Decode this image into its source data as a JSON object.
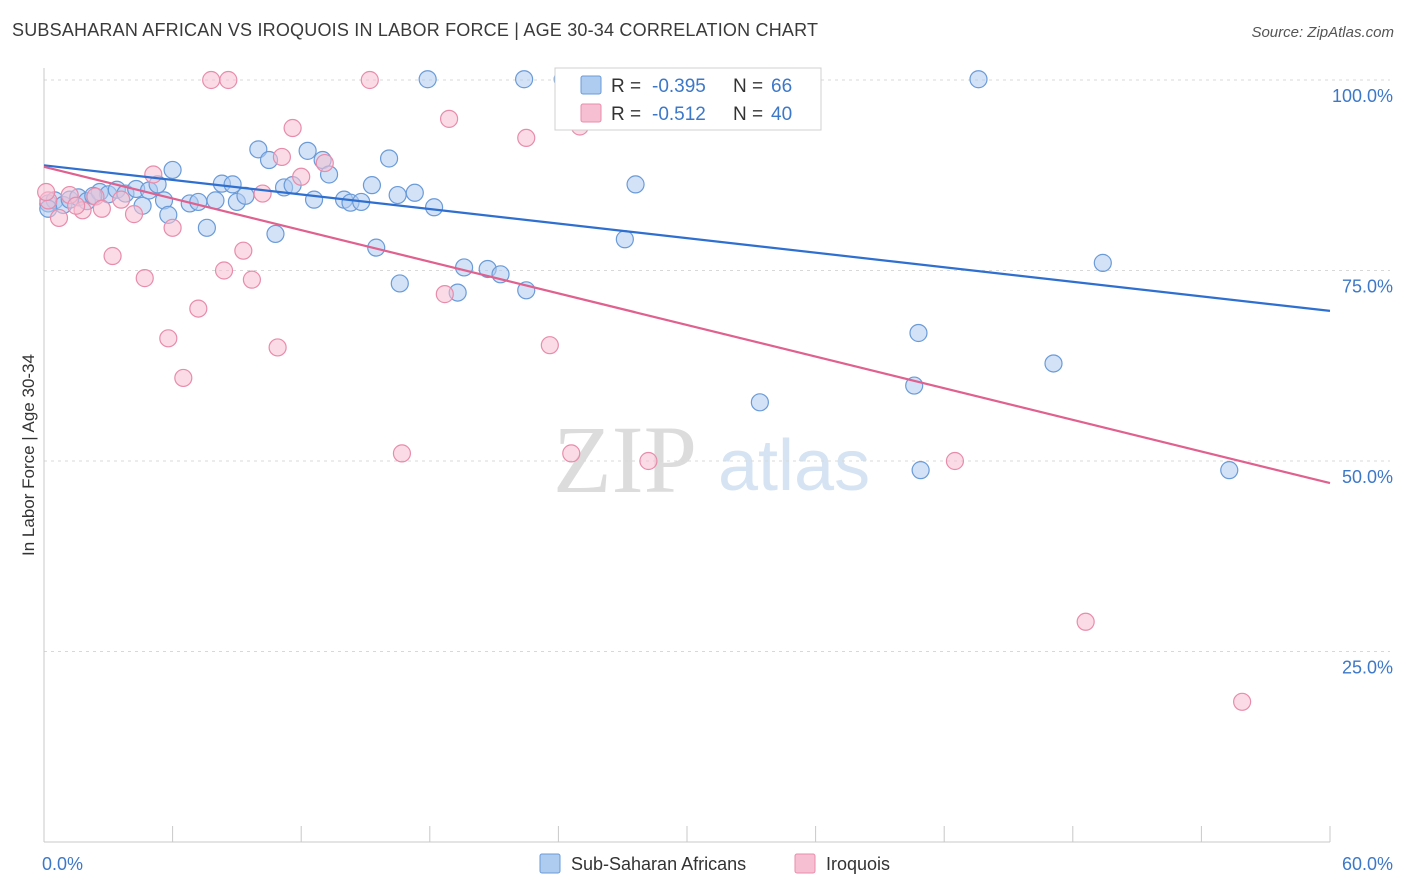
{
  "header": {
    "title": "SUBSAHARAN AFRICAN VS IROQUOIS IN LABOR FORCE | AGE 30-34 CORRELATION CHART",
    "source": "Source: ZipAtlas.com"
  },
  "watermark": {
    "zip": "ZIP",
    "atlas": "atlas"
  },
  "legend": {
    "series1": {
      "r_label": "R =",
      "r_value": "-0.395",
      "n_label": "N =",
      "n_value": "66"
    },
    "series2": {
      "r_label": "R =",
      "r_value": "-0.512",
      "n_label": "N =",
      "n_value": "40"
    }
  },
  "colors": {
    "blue_fill": "#aecbf0",
    "blue_stroke": "#6a9bd8",
    "blue_line": "#2f6fcf",
    "pink_fill": "#f7bfd2",
    "pink_stroke": "#e88cab",
    "pink_line": "#e0608e",
    "tick_text": "#3d78c8",
    "grid": "#d8d8d8"
  },
  "chart_data": {
    "type": "scatter",
    "title": "SUBSAHARAN AFRICAN VS IROQUOIS IN LABOR FORCE | AGE 30-34 CORRELATION CHART",
    "xlabel": "",
    "ylabel": "In Labor Force | Age 30-34",
    "xlim": [
      0,
      60
    ],
    "ylim": [
      0,
      105
    ],
    "x_tick_labels": [
      "0.0%",
      "60.0%"
    ],
    "y_ticks": [
      25,
      50,
      75,
      100
    ],
    "y_tick_labels": [
      "25.0%",
      "50.0%",
      "75.0%",
      "100.0%"
    ],
    "grid": "horizontal dashed",
    "legend_placement": "top-center",
    "series": [
      {
        "name": "Sub-Saharan Africans",
        "color": "#aecbf0",
        "trend": {
          "x": [
            0,
            60
          ],
          "y": [
            88.8,
            69.7
          ]
        },
        "points": [
          [
            0.2,
            83.8
          ],
          [
            0.5,
            84.2
          ],
          [
            0.9,
            83.6
          ],
          [
            1.2,
            84.3
          ],
          [
            1.6,
            84.6
          ],
          [
            2.0,
            84.1
          ],
          [
            2.6,
            85.3
          ],
          [
            3.0,
            85.0
          ],
          [
            3.4,
            85.6
          ],
          [
            3.8,
            85.1
          ],
          [
            4.3,
            85.7
          ],
          [
            4.6,
            83.5
          ],
          [
            4.9,
            85.5
          ],
          [
            5.3,
            86.3
          ],
          [
            5.6,
            84.2
          ],
          [
            5.8,
            82.3
          ],
          [
            6.0,
            88.2
          ],
          [
            6.8,
            83.8
          ],
          [
            7.2,
            84.0
          ],
          [
            7.6,
            80.6
          ],
          [
            8.0,
            84.2
          ],
          [
            8.3,
            86.4
          ],
          [
            8.8,
            86.3
          ],
          [
            9.0,
            84.0
          ],
          [
            9.4,
            84.8
          ],
          [
            10.0,
            90.9
          ],
          [
            10.5,
            89.5
          ],
          [
            10.8,
            79.8
          ],
          [
            11.2,
            85.9
          ],
          [
            11.6,
            86.2
          ],
          [
            12.3,
            90.7
          ],
          [
            12.6,
            84.3
          ],
          [
            13.0,
            89.5
          ],
          [
            13.3,
            87.6
          ],
          [
            14.0,
            84.3
          ],
          [
            14.3,
            83.9
          ],
          [
            14.8,
            84.0
          ],
          [
            15.3,
            86.2
          ],
          [
            15.5,
            78.0
          ],
          [
            16.1,
            89.7
          ],
          [
            16.5,
            84.9
          ],
          [
            16.6,
            73.3
          ],
          [
            17.3,
            85.2
          ],
          [
            17.9,
            100.1
          ],
          [
            18.2,
            83.3
          ],
          [
            19.3,
            72.1
          ],
          [
            19.6,
            75.4
          ],
          [
            20.7,
            75.2
          ],
          [
            21.3,
            74.5
          ],
          [
            22.4,
            100.1
          ],
          [
            22.5,
            72.4
          ],
          [
            24.2,
            100.1
          ],
          [
            27.1,
            79.1
          ],
          [
            27.6,
            86.3
          ],
          [
            29.5,
            100.1
          ],
          [
            30.6,
            100.1
          ],
          [
            33.4,
            57.7
          ],
          [
            40.6,
            59.9
          ],
          [
            40.8,
            66.8
          ],
          [
            40.9,
            48.8
          ],
          [
            43.6,
            100.1
          ],
          [
            47.1,
            62.8
          ],
          [
            49.4,
            76.0
          ],
          [
            55.3,
            48.8
          ],
          [
            0.2,
            83.1
          ],
          [
            2.3,
            84.8
          ]
        ]
      },
      {
        "name": "Iroquois",
        "color": "#f7bfd2",
        "trend": {
          "x": [
            0,
            60
          ],
          "y": [
            88.6,
            47.1
          ]
        },
        "points": [
          [
            0.2,
            84.2
          ],
          [
            0.7,
            81.9
          ],
          [
            1.2,
            84.9
          ],
          [
            1.8,
            82.9
          ],
          [
            2.4,
            84.7
          ],
          [
            2.7,
            83.1
          ],
          [
            3.2,
            76.9
          ],
          [
            3.6,
            84.3
          ],
          [
            4.2,
            82.4
          ],
          [
            4.7,
            74.0
          ],
          [
            5.1,
            87.6
          ],
          [
            5.8,
            66.1
          ],
          [
            6.0,
            80.6
          ],
          [
            6.5,
            60.9
          ],
          [
            7.2,
            70.0
          ],
          [
            7.8,
            100.0
          ],
          [
            8.4,
            75.0
          ],
          [
            8.6,
            100.0
          ],
          [
            9.3,
            77.6
          ],
          [
            9.7,
            73.8
          ],
          [
            10.2,
            85.1
          ],
          [
            10.9,
            64.9
          ],
          [
            11.1,
            89.9
          ],
          [
            11.6,
            93.7
          ],
          [
            12.0,
            87.3
          ],
          [
            13.1,
            89.1
          ],
          [
            15.2,
            100.0
          ],
          [
            16.7,
            51.0
          ],
          [
            18.7,
            71.9
          ],
          [
            18.9,
            94.9
          ],
          [
            22.5,
            92.4
          ],
          [
            23.6,
            65.2
          ],
          [
            24.6,
            51.0
          ],
          [
            25.0,
            93.9
          ],
          [
            28.2,
            50.0
          ],
          [
            42.5,
            50.0
          ],
          [
            48.6,
            28.9
          ],
          [
            55.9,
            18.4
          ],
          [
            0.1,
            85.3
          ],
          [
            1.5,
            83.5
          ]
        ]
      }
    ]
  },
  "bottom_legend": {
    "series1_label": "Sub-Saharan Africans",
    "series2_label": "Iroquois"
  }
}
